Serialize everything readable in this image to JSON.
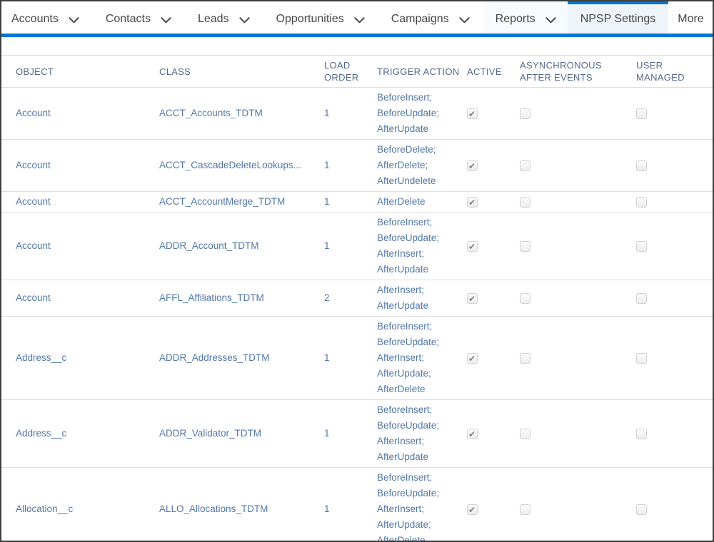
{
  "nav": {
    "items": [
      {
        "id": "accounts",
        "label": "Accounts",
        "has_chevron": true
      },
      {
        "id": "contacts",
        "label": "Contacts",
        "has_chevron": true
      },
      {
        "id": "leads",
        "label": "Leads",
        "has_chevron": true
      },
      {
        "id": "opportunities",
        "label": "Opportunities",
        "has_chevron": true
      },
      {
        "id": "campaigns",
        "label": "Campaigns",
        "has_chevron": true
      },
      {
        "id": "reports",
        "label": "Reports",
        "has_chevron": true,
        "tinted": true
      },
      {
        "id": "npsp-settings",
        "label": "NPSP Settings",
        "has_chevron": false,
        "active": true
      },
      {
        "id": "more",
        "label": "More",
        "has_chevron": false
      }
    ]
  },
  "table": {
    "columns": [
      {
        "id": "object",
        "label": "OBJECT"
      },
      {
        "id": "class",
        "label": "CLASS"
      },
      {
        "id": "load-order",
        "label": "LOAD ORDER"
      },
      {
        "id": "trigger-action",
        "label": "TRIGGER ACTION"
      },
      {
        "id": "active",
        "label": "ACTIVE"
      },
      {
        "id": "asynchronous-after-events",
        "label": "ASYNCHRONOUS AFTER EVENTS"
      },
      {
        "id": "user-managed",
        "label": "USER MANAGED"
      }
    ],
    "rows": [
      {
        "object": "Account",
        "class": "ACCT_Accounts_TDTM",
        "load_order": "1",
        "trigger_actions": [
          "BeforeInsert",
          "BeforeUpdate",
          "AfterUpdate"
        ],
        "active": true,
        "asynchronous_after_events": false,
        "user_managed": false
      },
      {
        "object": "Account",
        "class": "ACCT_CascadeDeleteLookups...",
        "load_order": "1",
        "trigger_actions": [
          "BeforeDelete",
          "AfterDelete",
          "AfterUndelete"
        ],
        "active": true,
        "asynchronous_after_events": false,
        "user_managed": false
      },
      {
        "object": "Account",
        "class": "ACCT_AccountMerge_TDTM",
        "load_order": "1",
        "trigger_actions": [
          "AfterDelete"
        ],
        "active": true,
        "asynchronous_after_events": false,
        "user_managed": false
      },
      {
        "object": "Account",
        "class": "ADDR_Account_TDTM",
        "load_order": "1",
        "trigger_actions": [
          "BeforeInsert",
          "BeforeUpdate",
          "AfterInsert",
          "AfterUpdate"
        ],
        "active": true,
        "asynchronous_after_events": false,
        "user_managed": false
      },
      {
        "object": "Account",
        "class": "AFFL_Affiliations_TDTM",
        "load_order": "2",
        "trigger_actions": [
          "AfterInsert",
          "AfterUpdate"
        ],
        "active": true,
        "asynchronous_after_events": false,
        "user_managed": false
      },
      {
        "object": "Address__c",
        "class": "ADDR_Addresses_TDTM",
        "load_order": "1",
        "trigger_actions": [
          "BeforeInsert",
          "BeforeUpdate",
          "AfterInsert",
          "AfterUpdate",
          "AfterDelete"
        ],
        "active": true,
        "asynchronous_after_events": false,
        "user_managed": false
      },
      {
        "object": "Address__c",
        "class": "ADDR_Validator_TDTM",
        "load_order": "1",
        "trigger_actions": [
          "BeforeInsert",
          "BeforeUpdate",
          "AfterInsert",
          "AfterUpdate"
        ],
        "active": true,
        "asynchronous_after_events": false,
        "user_managed": false
      },
      {
        "object": "Allocation__c",
        "class": "ALLO_Allocations_TDTM",
        "load_order": "1",
        "trigger_actions": [
          "BeforeInsert",
          "BeforeUpdate",
          "AfterInsert",
          "AfterUpdate",
          "AfterDelete"
        ],
        "active": true,
        "asynchronous_after_events": false,
        "user_managed": false
      }
    ]
  },
  "colors": {
    "accent_blue": "#0176d3",
    "nav_text": "#484848",
    "active_tab_bg": "#eef4fa",
    "reports_tab_bg": "#f8fbfd",
    "table_border": "#dddddd",
    "header_text": "#54698d",
    "body_text": "#5277a8",
    "checkbox_border": "#d2d2d2",
    "checkbox_check": "#7e7e7e",
    "outer_border": "#3f3f3f"
  }
}
